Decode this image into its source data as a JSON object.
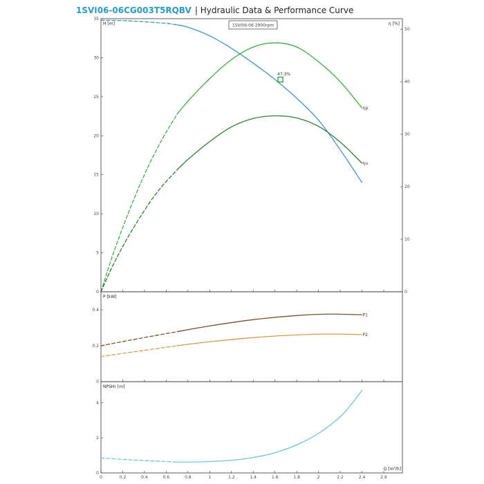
{
  "header": {
    "model": "1SVI06-06CG003T5RQBV",
    "separator": " | ",
    "subtitle": "Hydraulic Data & Performance Curve",
    "model_color": "#2a9bc4",
    "subtitle_color": "#222222"
  },
  "legend_box": {
    "text": "1SVI06-06 2900rpm"
  },
  "colors": {
    "head": "#3c97c2",
    "eta_p": "#3fae3f",
    "eta_u": "#2f7d32",
    "p1": "#7a4f2a",
    "p2": "#d99a52",
    "npsh": "#6fc4d8",
    "marker": "#2ea043"
  },
  "chart_data": [
    {
      "id": "performance",
      "type": "line",
      "ylabel": "H [m]",
      "y2label": "η [%]",
      "xlim": [
        0,
        2.6
      ],
      "ylim": [
        0,
        35
      ],
      "y2lim": [
        0,
        52
      ],
      "yticks": [
        0,
        5,
        10,
        15,
        20,
        25,
        30,
        35
      ],
      "y2ticks": [
        0,
        10,
        20,
        30,
        40,
        50
      ],
      "series": [
        {
          "key": "head",
          "axis": "left",
          "dashed_until": 0.7,
          "x": [
            0,
            0.2,
            0.4,
            0.6,
            0.7,
            0.8,
            1.0,
            1.2,
            1.4,
            1.6,
            1.8,
            2.0,
            2.2,
            2.4
          ],
          "y": [
            34.8,
            34.75,
            34.6,
            34.4,
            34.2,
            33.9,
            32.8,
            31.2,
            29.3,
            27.2,
            24.8,
            22.0,
            18.2,
            14.0
          ]
        },
        {
          "key": "eta_p",
          "axis": "right",
          "dashed_until": 0.7,
          "label": "ηp",
          "x": [
            0,
            0.1,
            0.2,
            0.3,
            0.4,
            0.5,
            0.6,
            0.7,
            0.8,
            1.0,
            1.2,
            1.4,
            1.6,
            1.8,
            2.0,
            2.2,
            2.4
          ],
          "y": [
            0,
            6.5,
            12.2,
            17.5,
            22.3,
            26.6,
            30.4,
            33.8,
            36.3,
            40.6,
            44.2,
            46.6,
            47.4,
            46.6,
            43.8,
            40.0,
            35.0
          ]
        },
        {
          "key": "eta_u",
          "axis": "right",
          "dashed_until": 0.7,
          "label": "ηu",
          "x": [
            0,
            0.1,
            0.2,
            0.3,
            0.4,
            0.5,
            0.6,
            0.7,
            0.8,
            1.0,
            1.2,
            1.4,
            1.6,
            1.8,
            2.0,
            2.2,
            2.4
          ],
          "y": [
            0,
            4.6,
            8.6,
            12.2,
            15.5,
            18.5,
            21.0,
            23.2,
            25.2,
            28.6,
            31.4,
            33.0,
            33.5,
            33.1,
            31.5,
            28.5,
            24.5
          ]
        }
      ],
      "marker": {
        "x": 1.65,
        "y": 27.2,
        "label": "47.3%"
      }
    },
    {
      "id": "power",
      "type": "line",
      "ylabel": "P [kW]",
      "xlim": [
        0,
        2.6
      ],
      "ylim": [
        0,
        0.5
      ],
      "yticks": [
        0,
        0.2,
        0.4
      ],
      "series": [
        {
          "key": "p1",
          "dashed_until": 0.7,
          "label": "P1",
          "x": [
            0,
            0.35,
            0.7,
            1.0,
            1.4,
            1.8,
            2.1,
            2.4
          ],
          "y": [
            0.2,
            0.24,
            0.278,
            0.31,
            0.345,
            0.368,
            0.376,
            0.372
          ]
        },
        {
          "key": "p2",
          "dashed_until": 0.7,
          "label": "P2",
          "x": [
            0,
            0.35,
            0.7,
            1.0,
            1.4,
            1.8,
            2.1,
            2.4
          ],
          "y": [
            0.14,
            0.17,
            0.2,
            0.222,
            0.245,
            0.26,
            0.265,
            0.262
          ]
        }
      ]
    },
    {
      "id": "npsh",
      "type": "line",
      "ylabel": "NPSHr [m]",
      "xlabel": "Q [m³/h]",
      "xlim": [
        0,
        2.6
      ],
      "ylim": [
        0,
        5.2
      ],
      "yticks": [
        0,
        2,
        4
      ],
      "xticks": [
        0,
        0.2,
        0.4,
        0.6,
        0.8,
        1,
        1.2,
        1.4,
        1.6,
        1.8,
        2,
        2.2,
        2.4,
        2.6
      ],
      "series": [
        {
          "key": "npsh",
          "dashed_until": 0.7,
          "x": [
            0,
            0.35,
            0.7,
            0.9,
            1.2,
            1.4,
            1.6,
            1.8,
            2.0,
            2.2,
            2.3,
            2.4
          ],
          "y": [
            0.85,
            0.72,
            0.62,
            0.63,
            0.72,
            0.88,
            1.15,
            1.6,
            2.25,
            3.2,
            3.9,
            4.7
          ]
        }
      ]
    }
  ]
}
